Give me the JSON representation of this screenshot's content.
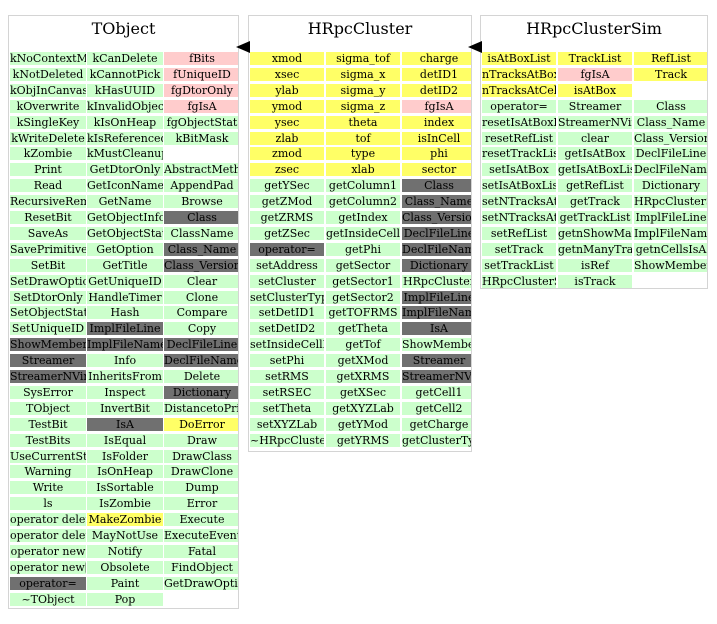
{
  "colors": {
    "green": "#ccffcc",
    "yellow": "#ffff66",
    "pink": "#ffcccc",
    "dark": "#707070",
    "border": "#d4d4d4"
  },
  "classes": [
    {
      "name": "TObject",
      "columns": [
        [
          "g:kNoContextMenu",
          "g:kNotDeleted",
          "g:kObjInCanvas",
          "g:kOverwrite",
          "g:kSingleKey",
          "g:kWriteDelete",
          "g:kZombie",
          "g:Print",
          "g:Read",
          "g:RecursiveRemove",
          "g:ResetBit",
          "g:SaveAs",
          "g:SavePrimitive",
          "g:SetBit",
          "g:SetDrawOption",
          "g:SetDtorOnly",
          "g:SetObjectStat",
          "g:SetUniqueID",
          "d:ShowMembers",
          "d:Streamer",
          "d:StreamerNVirtual",
          "g:SysError",
          "g:TObject",
          "g:TestBit",
          "g:TestBits",
          "g:UseCurrentStyle",
          "g:Warning",
          "g:Write",
          "g:ls",
          "g:operator delete",
          "g:operator delete[]",
          "g:operator new",
          "g:operator new[]",
          "d:operator=",
          "g:~TObject"
        ],
        [
          "g:kCanDelete",
          "g:kCannotPick",
          "g:kHasUUID",
          "g:kInvalidObject",
          "g:kIsOnHeap",
          "g:kIsReferenced",
          "g:kMustCleanup",
          "g:GetDtorOnly",
          "g:GetIconName",
          "g:GetName",
          "g:GetObjectInfo",
          "g:GetObjectStat",
          "g:GetOption",
          "g:GetTitle",
          "g:GetUniqueID",
          "g:HandleTimer",
          "g:Hash",
          "d:ImplFileLine",
          "d:ImplFileName",
          "g:Info",
          "g:InheritsFrom",
          "g:Inspect",
          "g:InvertBit",
          "d:IsA",
          "g:IsEqual",
          "g:IsFolder",
          "g:IsOnHeap",
          "g:IsSortable",
          "g:IsZombie",
          "y:MakeZombie",
          "g:MayNotUse",
          "g:Notify",
          "g:Obsolete",
          "g:Paint",
          "g:Pop"
        ],
        [
          "p:fBits",
          "p:fUniqueID",
          "p:fgDtorOnly",
          "p:fgIsA",
          "g:fgObjectStat",
          "g:kBitMask",
          "w:",
          "g:AbstractMethod",
          "g:AppendPad",
          "g:Browse",
          "d:Class",
          "g:ClassName",
          "d:Class_Name",
          "d:Class_Version",
          "g:Clear",
          "g:Clone",
          "g:Compare",
          "g:Copy",
          "d:DeclFileLine",
          "d:DeclFileName",
          "g:Delete",
          "d:Dictionary",
          "g:DistancetoPrimitive",
          "y:DoError",
          "g:Draw",
          "g:DrawClass",
          "g:DrawClone",
          "g:Dump",
          "g:Error",
          "g:Execute",
          "g:ExecuteEvent",
          "g:Fatal",
          "g:FindObject",
          "g:GetDrawOption"
        ]
      ]
    },
    {
      "name": "HRpcCluster",
      "columns": [
        [
          "y:xmod",
          "y:xsec",
          "y:ylab",
          "y:ymod",
          "y:ysec",
          "y:zlab",
          "y:zmod",
          "y:zsec",
          "g:getYSec",
          "g:getZMod",
          "g:getZRMS",
          "g:getZSec",
          "d:operator=",
          "g:setAddress",
          "g:setCluster",
          "g:setClusterType",
          "g:setDetID1",
          "g:setDetID2",
          "g:setInsideCellFlag",
          "g:setPhi",
          "g:setRMS",
          "g:setRSEC",
          "g:setTheta",
          "g:setXYZLab",
          "g:~HRpcCluster"
        ],
        [
          "y:sigma_tof",
          "y:sigma_x",
          "y:sigma_y",
          "y:sigma_z",
          "y:theta",
          "y:tof",
          "y:type",
          "y:xlab",
          "g:getColumn1",
          "g:getColumn2",
          "g:getIndex",
          "g:getInsideCellFlag",
          "g:getPhi",
          "g:getSector",
          "g:getSector1",
          "g:getSector2",
          "g:getTOFRMS",
          "g:getTheta",
          "g:getTof",
          "g:getXMod",
          "g:getXRMS",
          "g:getXSec",
          "g:getXYZLab",
          "g:getYMod",
          "g:getYRMS"
        ],
        [
          "y:charge",
          "y:detID1",
          "y:detID2",
          "p:fgIsA",
          "y:index",
          "y:isInCell",
          "y:phi",
          "y:sector",
          "d:Class",
          "d:Class_Name",
          "d:Class_Version",
          "d:DeclFileLine",
          "d:DeclFileName",
          "d:Dictionary",
          "g:HRpcCluster",
          "d:ImplFileLine",
          "d:ImplFileName",
          "d:IsA",
          "g:ShowMembers",
          "d:Streamer",
          "d:StreamerNVirtual",
          "g:getCell1",
          "g:getCell2",
          "g:getCharge",
          "g:getClusterType"
        ]
      ]
    },
    {
      "name": "HRpcClusterSim",
      "columns": [
        [
          "y:isAtBoxList",
          "y:nTracksAtBox",
          "y:nTracksAtCells",
          "g:operator=",
          "g:resetIsAtBoxList",
          "g:resetRefList",
          "g:resetTrackList",
          "g:setIsAtBox",
          "g:setIsAtBoxList",
          "g:setNTracksAtBox",
          "g:setNTracksAtCells",
          "g:setRefList",
          "g:setTrack",
          "g:setTrackList",
          "g:HRpcClusterSim"
        ],
        [
          "y:TrackList",
          "p:fgIsA",
          "y:isAtBox",
          "g:Streamer",
          "g:StreamerNVirtual",
          "g:clear",
          "g:getIsAtBox",
          "g:getIsAtBoxList",
          "g:getRefList",
          "g:getTrack",
          "g:getTrackList",
          "g:getnShowManyTracks",
          "g:getnManyTracksAt",
          "g:isRef",
          "g:isTrack"
        ],
        [
          "y:RefList",
          "y:Track",
          "w:",
          "g:Class",
          "g:Class_Name",
          "g:Class_Version",
          "g:DeclFileLine",
          "g:DeclFileName",
          "g:Dictionary",
          "g:HRpcClusterSim",
          "g:ImplFileLine",
          "g:ImplFileName",
          "g:getnCellsIsA",
          "g:ShowMembers"
        ]
      ]
    }
  ]
}
